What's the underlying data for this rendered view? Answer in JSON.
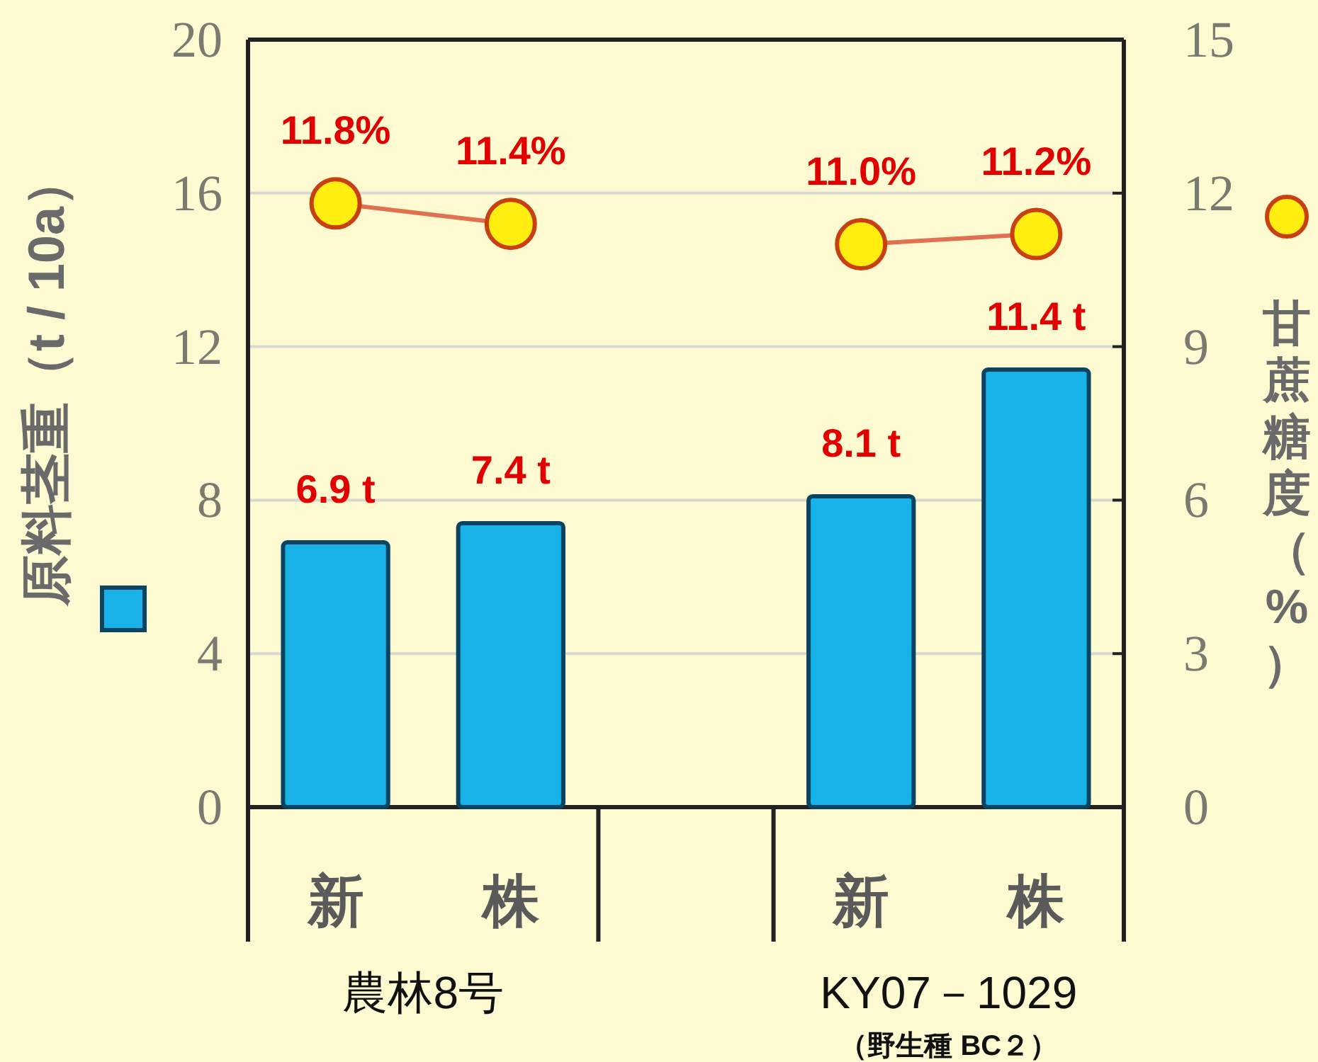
{
  "chart_data": {
    "type": "bar",
    "categories": [
      "新",
      "株",
      null,
      "新",
      "株"
    ],
    "ylabel": "原料茎重（t / 10a）",
    "y2label": "甘蔗糖度（%）",
    "ylim": [
      0,
      20
    ],
    "yticks": [
      0,
      4,
      8,
      12,
      16,
      20
    ],
    "y2lim": [
      0,
      15
    ],
    "y2ticks": [
      0,
      3,
      6,
      9,
      12,
      15
    ],
    "grid": "y",
    "legend": false,
    "series": [
      {
        "color": "#18b2e8",
        "values": [
          6.9,
          7.4,
          null,
          8.1,
          11.4
        ],
        "value_labels": [
          "6.9 t",
          "7.4 t",
          null,
          "8.1 t",
          "11.4 t"
        ]
      },
      {
        "type": "line",
        "axis": "y2",
        "color": "#e07050",
        "marker": "circle",
        "values": [
          11.8,
          11.4,
          null,
          11.0,
          11.2
        ],
        "value_labels": [
          "11.8%",
          "11.4%",
          null,
          "11.0%",
          "11.2%"
        ]
      }
    ],
    "annotations": [
      "農林8号",
      "KY07－1029",
      "（野生種 BC２）"
    ]
  }
}
